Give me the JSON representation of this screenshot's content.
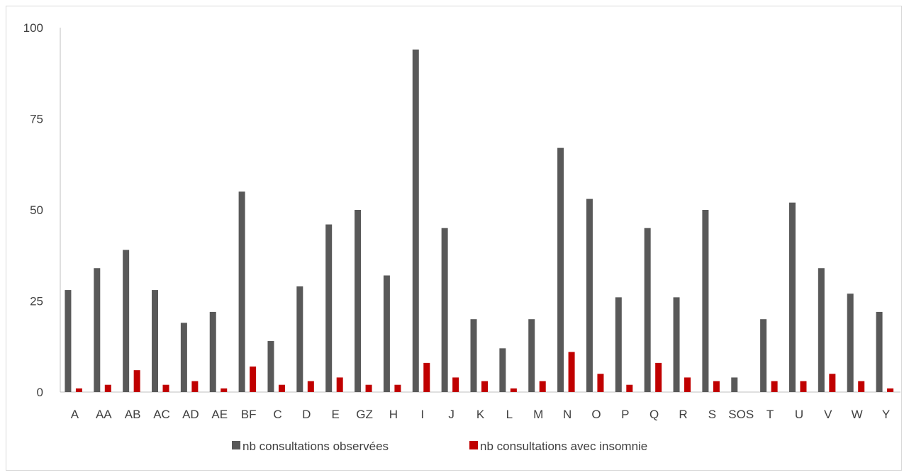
{
  "chart_data": {
    "type": "bar",
    "categories": [
      "A",
      "AA",
      "AB",
      "AC",
      "AD",
      "AE",
      "BF",
      "C",
      "D",
      "E",
      "GZ",
      "H",
      "I",
      "J",
      "K",
      "L",
      "M",
      "N",
      "O",
      "P",
      "Q",
      "R",
      "S",
      "SOS",
      "T",
      "U",
      "V",
      "W",
      "Y"
    ],
    "series": [
      {
        "name": "nb consultations observées",
        "color": "#595959",
        "values": [
          28,
          34,
          39,
          28,
          19,
          22,
          55,
          14,
          29,
          46,
          50,
          32,
          94,
          45,
          20,
          12,
          20,
          67,
          53,
          26,
          45,
          26,
          50,
          4,
          20,
          52,
          34,
          27,
          22
        ]
      },
      {
        "name": "nb consultations avec insomnie",
        "color": "#c00000",
        "values": [
          1,
          2,
          6,
          2,
          3,
          1,
          7,
          2,
          3,
          4,
          2,
          2,
          8,
          4,
          3,
          1,
          3,
          11,
          5,
          2,
          8,
          4,
          3,
          0,
          3,
          3,
          5,
          3,
          1
        ]
      }
    ],
    "ylim": [
      0,
      100
    ],
    "yticks": [
      0,
      25,
      50,
      75,
      100
    ],
    "axis_color": "#bfbfbf",
    "grid": false,
    "legend_position": "bottom",
    "title": "",
    "xlabel": "",
    "ylabel": ""
  }
}
